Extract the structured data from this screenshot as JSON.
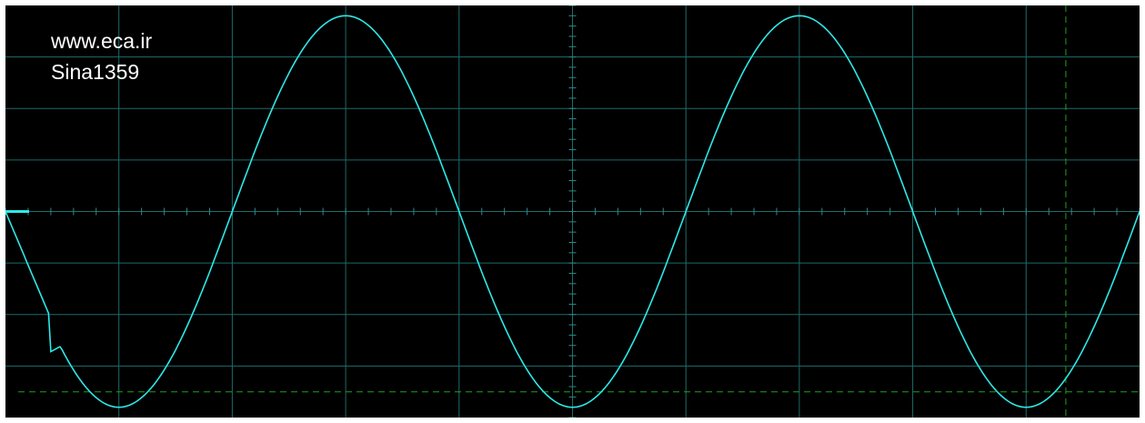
{
  "watermark": {
    "line1": "www.eca.ir",
    "line2": "Sina1359"
  },
  "colors": {
    "screen_background": "#000000",
    "graticule": "#1e6b6b",
    "center_axis_ticks": "#2e8a8a",
    "trace": "#2ee8e8",
    "cursor": "#1fa01f",
    "text": "#ffffff",
    "page_background": "#ffffff"
  },
  "display": {
    "horizontal_divisions": 10,
    "vertical_divisions": 8,
    "minor_ticks_per_division": 5,
    "cursors": [
      "vertical-cursor-dashed",
      "horizontal-cursor-dashed"
    ]
  },
  "chart_data": {
    "type": "line",
    "title": "",
    "xlabel": "",
    "ylabel": "",
    "xlim": [
      0,
      10
    ],
    "ylim": [
      -4,
      4
    ],
    "grid": true,
    "series": [
      {
        "values_x": [
          0,
          0.25,
          0.5,
          1,
          1.5,
          2,
          2.5,
          3,
          3.5,
          4,
          4.5,
          5,
          5.5,
          6,
          6.5,
          7,
          7.5,
          8,
          8.5,
          9,
          9.5,
          10
        ],
        "values_y": [
          0,
          -1.5,
          -2.6,
          -3.8,
          -2.7,
          0,
          2.7,
          3.8,
          2.7,
          0,
          -2.7,
          -3.8,
          -2.7,
          0,
          2.7,
          3.8,
          2.7,
          0,
          -2.7,
          -3.8,
          -2.7,
          0.4
        ]
      }
    ],
    "cursor_x": 9.35,
    "cursor_y": -3.5,
    "ground_marker_y": 0
  }
}
